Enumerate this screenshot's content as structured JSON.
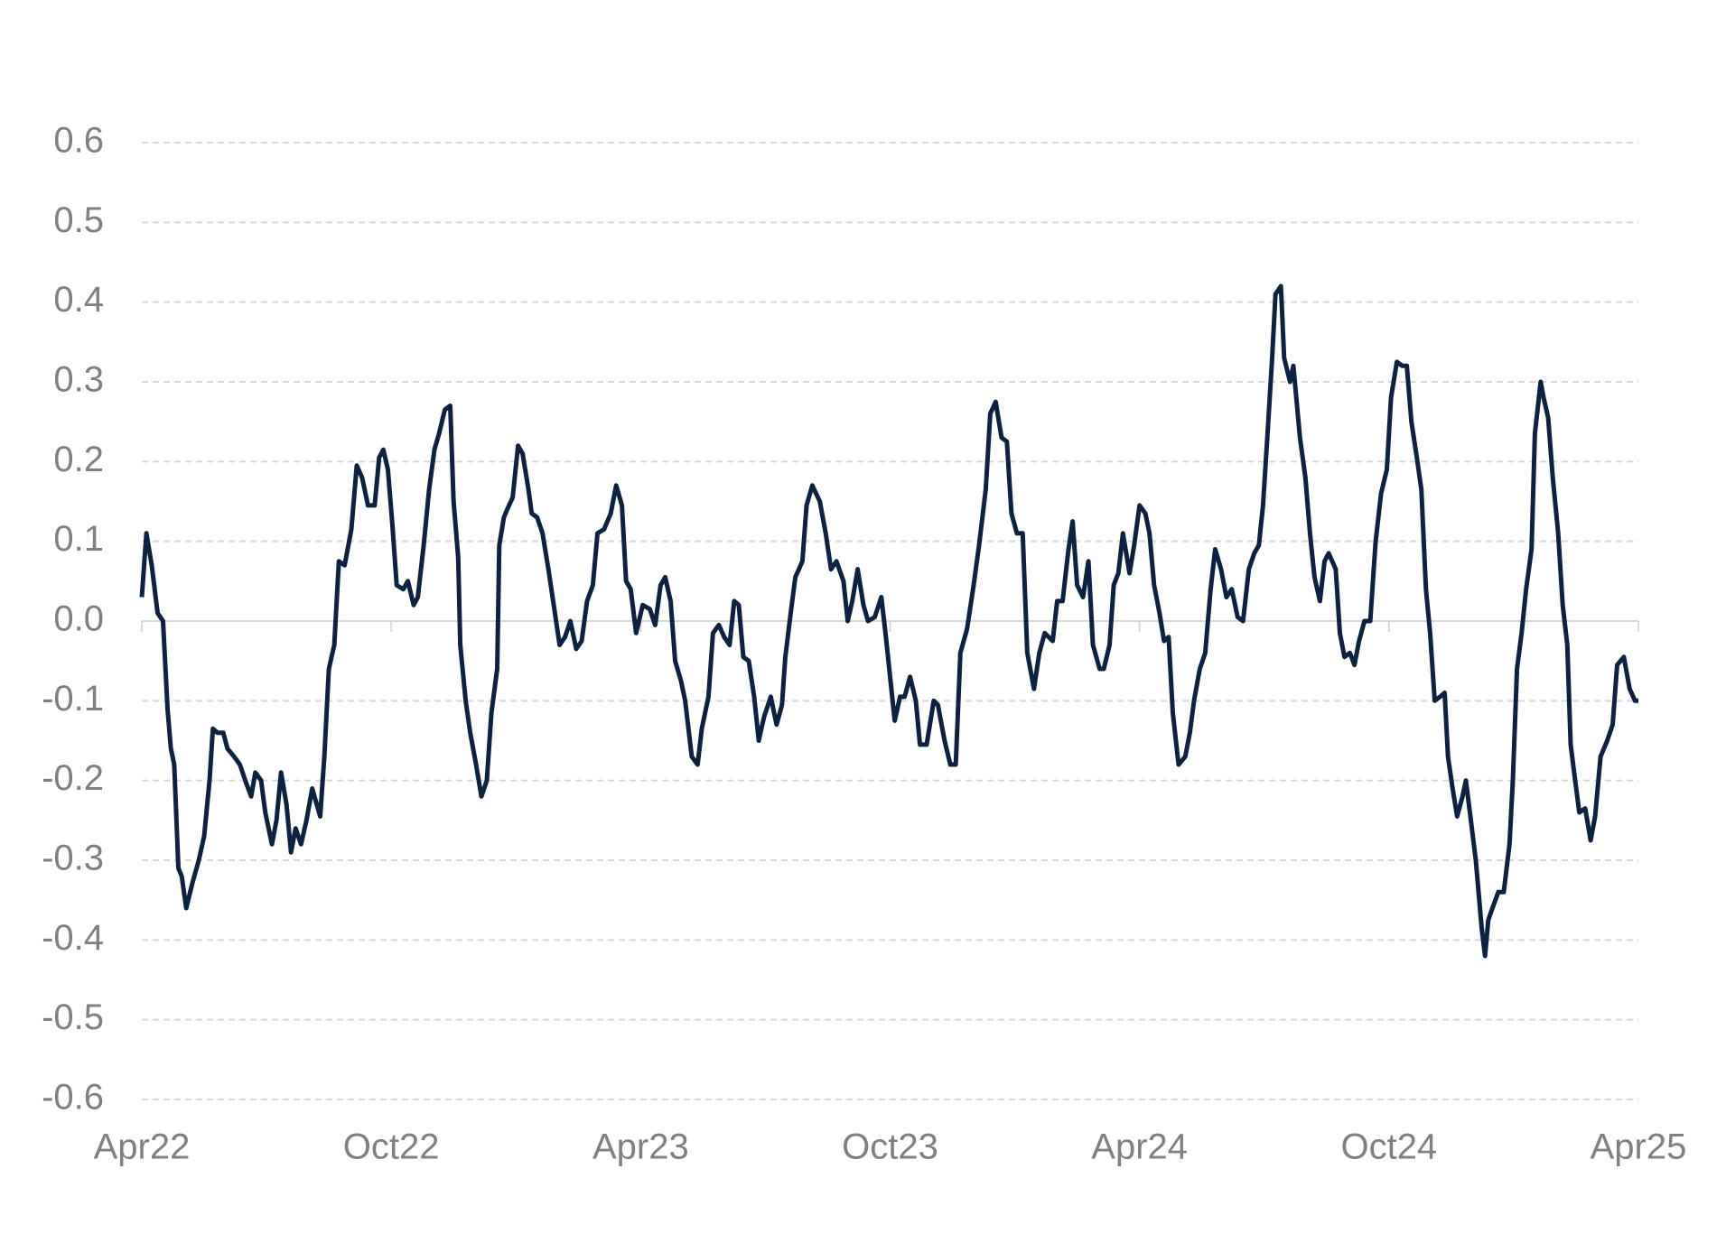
{
  "chart_data": {
    "type": "line",
    "x": [
      0,
      0.11,
      0.24,
      0.38,
      0.51,
      0.62,
      0.7,
      0.78,
      0.88,
      0.96,
      1.07,
      1.21,
      1.37,
      1.5,
      1.63,
      1.71,
      1.82,
      1.96,
      2.06,
      2.22,
      2.36,
      2.49,
      2.63,
      2.73,
      2.87,
      2.97,
      3.13,
      3.24,
      3.35,
      3.48,
      3.59,
      3.7,
      3.83,
      3.96,
      4.1,
      4.29,
      4.39,
      4.5,
      4.63,
      4.74,
      4.88,
      5.04,
      5.17,
      5.3,
      5.44,
      5.6,
      5.71,
      5.81,
      5.92,
      6.03,
      6.13,
      6.29,
      6.4,
      6.54,
      6.64,
      6.78,
      6.91,
      7.04,
      7.15,
      7.29,
      7.42,
      7.5,
      7.61,
      7.66,
      7.79,
      7.9,
      8.04,
      8.17,
      8.3,
      8.41,
      8.55,
      8.6,
      8.71,
      8.79,
      8.92,
      9.05,
      9.16,
      9.3,
      9.38,
      9.51,
      9.64,
      9.78,
      9.91,
      10.05,
      10.18,
      10.31,
      10.45,
      10.58,
      10.71,
      10.85,
      10.96,
      11.12,
      11.28,
      11.41,
      11.55,
      11.65,
      11.76,
      11.89,
      12.05,
      12.22,
      12.35,
      12.48,
      12.59,
      12.72,
      12.83,
      12.97,
      13.07,
      13.23,
      13.37,
      13.47,
      13.63,
      13.74,
      13.88,
      14.01,
      14.14,
      14.25,
      14.36,
      14.47,
      14.6,
      14.73,
      14.84,
      14.97,
      15.13,
      15.27,
      15.4,
      15.48,
      15.62,
      15.72,
      15.89,
      15.99,
      16.13,
      16.31,
      16.45,
      16.58,
      16.71,
      16.88,
      16.98,
      17.09,
      17.22,
      17.36,
      17.47,
      17.63,
      17.79,
      17.89,
      18.0,
      18.11,
      18.24,
      18.35,
      18.48,
      18.62,
      18.72,
      18.88,
      19.05,
      19.15,
      19.31,
      19.45,
      19.58,
      19.69,
      19.85,
      20.01,
      20.14,
      20.3,
      20.41,
      20.54,
      20.68,
      20.81,
      20.92,
      21.05,
      21.19,
      21.3,
      21.46,
      21.59,
      21.72,
      21.91,
      22.02,
      22.15,
      22.29,
      22.39,
      22.5,
      22.64,
      22.77,
      22.88,
      23.04,
      23.14,
      23.28,
      23.38,
      23.49,
      23.6,
      23.76,
      23.87,
      24.0,
      24.14,
      24.24,
      24.35,
      24.48,
      24.59,
      24.7,
      24.8,
      24.94,
      25.1,
      25.21,
      25.31,
      25.45,
      25.58,
      25.71,
      25.82,
      25.96,
      26.09,
      26.22,
      26.36,
      26.49,
      26.63,
      26.76,
      26.87,
      26.97,
      27.08,
      27.19,
      27.27,
      27.4,
      27.48,
      27.62,
      27.7,
      27.86,
      27.99,
      28.1,
      28.21,
      28.34,
      28.45,
      28.55,
      28.72,
      28.82,
      28.93,
      29.06,
      29.17,
      29.28,
      29.41,
      29.55,
      29.68,
      29.81,
      29.95,
      30.05,
      30.19,
      30.32,
      30.43,
      30.54,
      30.67,
      30.78,
      30.89,
      30.99,
      31.1,
      31.23,
      31.34,
      31.42,
      31.53,
      31.64,
      31.77,
      31.85,
      31.96,
      32.09,
      32.23,
      32.31,
      32.39,
      32.49,
      32.63,
      32.76,
      32.9,
      32.98,
      33.08,
      33.19,
      33.3,
      33.43,
      33.51,
      33.65,
      33.72,
      33.83,
      33.94,
      34.07,
      34.18,
      34.29,
      34.37,
      34.48,
      34.58,
      34.72,
      34.85,
      34.96,
      35.09,
      35.25,
      35.38,
      35.49,
      35.65,
      35.79,
      35.92,
      36.0
    ],
    "values": [
      0.03,
      0.11,
      0.07,
      0.01,
      0.0,
      -0.11,
      -0.16,
      -0.18,
      -0.31,
      -0.32,
      -0.36,
      -0.33,
      -0.3,
      -0.27,
      -0.2,
      -0.135,
      -0.14,
      -0.14,
      -0.16,
      -0.17,
      -0.18,
      -0.2,
      -0.22,
      -0.19,
      -0.2,
      -0.24,
      -0.28,
      -0.25,
      -0.19,
      -0.23,
      -0.29,
      -0.26,
      -0.28,
      -0.25,
      -0.21,
      -0.245,
      -0.17,
      -0.06,
      -0.03,
      0.075,
      0.07,
      0.115,
      0.195,
      0.18,
      0.145,
      0.145,
      0.205,
      0.215,
      0.19,
      0.12,
      0.045,
      0.04,
      0.05,
      0.02,
      0.03,
      0.095,
      0.165,
      0.215,
      0.235,
      0.265,
      0.27,
      0.15,
      0.08,
      -0.03,
      -0.1,
      -0.14,
      -0.18,
      -0.22,
      -0.2,
      -0.115,
      -0.06,
      0.095,
      0.13,
      0.14,
      0.155,
      0.22,
      0.21,
      0.165,
      0.135,
      0.13,
      0.11,
      0.065,
      0.02,
      -0.03,
      -0.02,
      0.0,
      -0.035,
      -0.025,
      0.025,
      0.045,
      0.11,
      0.115,
      0.135,
      0.17,
      0.145,
      0.05,
      0.04,
      -0.015,
      0.02,
      0.015,
      -0.005,
      0.045,
      0.055,
      0.025,
      -0.05,
      -0.075,
      -0.1,
      -0.17,
      -0.18,
      -0.135,
      -0.095,
      -0.015,
      -0.005,
      -0.02,
      -0.03,
      0.025,
      0.02,
      -0.045,
      -0.05,
      -0.095,
      -0.15,
      -0.12,
      -0.095,
      -0.13,
      -0.105,
      -0.045,
      0.015,
      0.055,
      0.075,
      0.145,
      0.17,
      0.15,
      0.11,
      0.065,
      0.075,
      0.05,
      0.0,
      0.025,
      0.065,
      0.02,
      0.0,
      0.005,
      0.03,
      -0.015,
      -0.07,
      -0.125,
      -0.095,
      -0.095,
      -0.07,
      -0.1,
      -0.155,
      -0.155,
      -0.1,
      -0.105,
      -0.15,
      -0.18,
      -0.18,
      -0.04,
      -0.01,
      0.045,
      0.095,
      0.165,
      0.26,
      0.275,
      0.23,
      0.225,
      0.135,
      0.11,
      0.11,
      -0.04,
      -0.085,
      -0.04,
      -0.015,
      -0.025,
      0.025,
      0.025,
      0.09,
      0.125,
      0.045,
      0.03,
      0.075,
      -0.03,
      -0.06,
      -0.06,
      -0.03,
      0.045,
      0.06,
      0.11,
      0.06,
      0.095,
      0.145,
      0.135,
      0.11,
      0.045,
      0.01,
      -0.025,
      -0.02,
      -0.115,
      -0.18,
      -0.17,
      -0.14,
      -0.1,
      -0.06,
      -0.04,
      0.04,
      0.09,
      0.065,
      0.03,
      0.04,
      0.005,
      0.0,
      0.065,
      0.085,
      0.095,
      0.145,
      0.235,
      0.33,
      0.41,
      0.42,
      0.33,
      0.3,
      0.32,
      0.23,
      0.18,
      0.11,
      0.055,
      0.025,
      0.075,
      0.085,
      0.065,
      -0.015,
      -0.045,
      -0.04,
      -0.055,
      -0.025,
      0.0,
      0.0,
      0.1,
      0.16,
      0.19,
      0.28,
      0.325,
      0.32,
      0.32,
      0.25,
      0.205,
      0.165,
      0.04,
      -0.015,
      -0.1,
      -0.095,
      -0.09,
      -0.17,
      -0.21,
      -0.245,
      -0.22,
      -0.2,
      -0.245,
      -0.3,
      -0.385,
      -0.42,
      -0.375,
      -0.36,
      -0.34,
      -0.34,
      -0.28,
      -0.2,
      -0.06,
      -0.015,
      0.04,
      0.09,
      0.235,
      0.3,
      0.28,
      0.255,
      0.18,
      0.11,
      0.02,
      -0.03,
      -0.155,
      -0.2,
      -0.24,
      -0.235,
      -0.275,
      -0.245,
      -0.17,
      -0.15,
      -0.13,
      -0.055,
      -0.045,
      -0.085,
      -0.1,
      -0.1
    ],
    "color": "#0d2240",
    "xlim": [
      0,
      36
    ],
    "xticks": [
      {
        "value": 0,
        "label": "Apr22"
      },
      {
        "value": 6,
        "label": "Oct22"
      },
      {
        "value": 12,
        "label": "Apr23"
      },
      {
        "value": 18,
        "label": "Oct23"
      },
      {
        "value": 24,
        "label": "Apr24"
      },
      {
        "value": 30,
        "label": "Oct24"
      },
      {
        "value": 36,
        "label": "Apr25"
      }
    ],
    "ylim": [
      -0.6,
      0.6
    ],
    "yticks": [
      0.6,
      0.5,
      0.4,
      0.3,
      0.2,
      0.1,
      {
        "value": 0,
        "label": "0.0"
      },
      -0.1,
      -0.2,
      -0.3,
      -0.4,
      -0.5,
      -0.6
    ],
    "grid": true
  }
}
